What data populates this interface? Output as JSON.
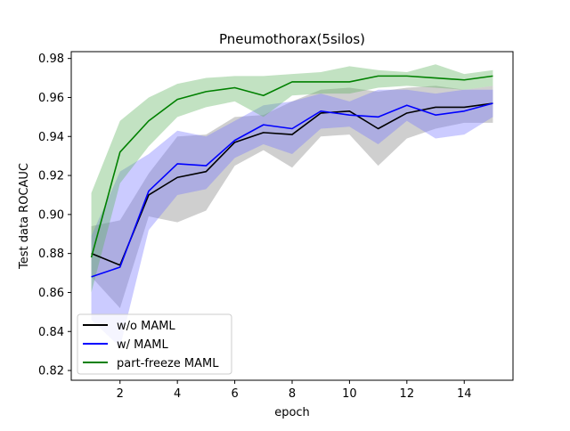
{
  "chart_data": {
    "type": "line",
    "title": "Pneumothorax(5silos)",
    "xlabel": "epoch",
    "ylabel": "Test data ROCAUC",
    "xlim": [
      0.3,
      15.7
    ],
    "ylim": [
      0.815,
      0.9835
    ],
    "x_ticks": [
      2,
      4,
      6,
      8,
      10,
      12,
      14
    ],
    "y_ticks": [
      0.82,
      0.84,
      0.86,
      0.88,
      0.9,
      0.92,
      0.94,
      0.96,
      0.98
    ],
    "y_tick_labels": [
      "0.82",
      "0.84",
      "0.86",
      "0.88",
      "0.90",
      "0.92",
      "0.94",
      "0.96",
      "0.98"
    ],
    "grid": false,
    "legend_position": "lower-left",
    "x": [
      1,
      2,
      3,
      4,
      5,
      6,
      7,
      8,
      9,
      10,
      11,
      12,
      13,
      14,
      15
    ],
    "series": [
      {
        "name": "w/o MAML",
        "color": "#000000",
        "band_color": "#808080",
        "values": [
          0.88,
          0.874,
          0.91,
          0.919,
          0.922,
          0.937,
          0.942,
          0.941,
          0.952,
          0.953,
          0.944,
          0.952,
          0.955,
          0.955,
          0.957
        ],
        "lower": [
          0.868,
          0.852,
          0.899,
          0.896,
          0.902,
          0.925,
          0.933,
          0.924,
          0.94,
          0.941,
          0.925,
          0.939,
          0.944,
          0.947,
          0.947
        ],
        "upper": [
          0.894,
          0.897,
          0.921,
          0.94,
          0.941,
          0.95,
          0.951,
          0.958,
          0.964,
          0.965,
          0.963,
          0.965,
          0.966,
          0.964,
          0.966
        ]
      },
      {
        "name": "w/ MAML",
        "color": "#0000ff",
        "band_color": "#7777ff",
        "values": [
          0.868,
          0.873,
          0.912,
          0.926,
          0.925,
          0.938,
          0.946,
          0.944,
          0.953,
          0.951,
          0.95,
          0.956,
          0.951,
          0.953,
          0.957
        ],
        "lower": [
          0.846,
          0.832,
          0.892,
          0.91,
          0.913,
          0.929,
          0.936,
          0.931,
          0.944,
          0.945,
          0.936,
          0.948,
          0.939,
          0.941,
          0.95
        ],
        "upper": [
          0.889,
          0.922,
          0.931,
          0.943,
          0.94,
          0.948,
          0.956,
          0.958,
          0.962,
          0.958,
          0.964,
          0.964,
          0.962,
          0.964,
          0.964
        ]
      },
      {
        "name": "part-freeze MAML",
        "color": "#008000",
        "band_color": "#5fb35f",
        "values": [
          0.878,
          0.932,
          0.948,
          0.959,
          0.963,
          0.965,
          0.961,
          0.968,
          0.968,
          0.968,
          0.971,
          0.971,
          0.97,
          0.969,
          0.971
        ],
        "lower": [
          0.86,
          0.916,
          0.935,
          0.95,
          0.955,
          0.958,
          0.95,
          0.961,
          0.962,
          0.962,
          0.965,
          0.966,
          0.965,
          0.964,
          0.966
        ],
        "upper": [
          0.911,
          0.948,
          0.96,
          0.967,
          0.97,
          0.971,
          0.971,
          0.972,
          0.973,
          0.976,
          0.974,
          0.973,
          0.977,
          0.972,
          0.974
        ]
      }
    ]
  }
}
